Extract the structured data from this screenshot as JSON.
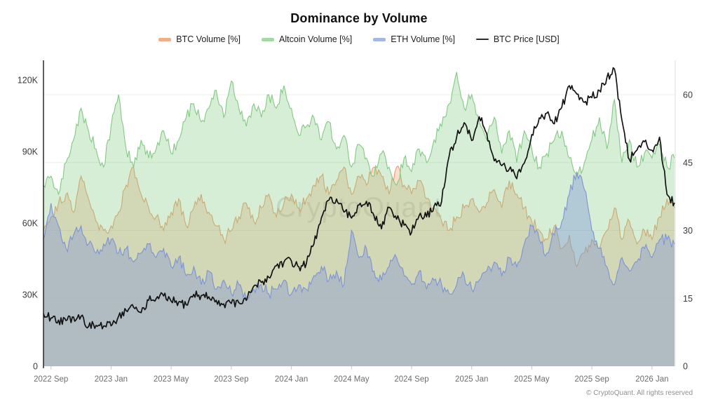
{
  "header": {
    "title": "Dominance by Volume"
  },
  "legend": {
    "items": [
      {
        "label": "BTC Volume [%]",
        "kind": "area",
        "swatch": "#f2ae85"
      },
      {
        "label": "Altcoin Volume [%]",
        "kind": "area",
        "swatch": "#a5d9a3"
      },
      {
        "label": "ETH Volume [%]",
        "kind": "area",
        "swatch": "#a3b7e6"
      },
      {
        "label": "BTC Price [USD]",
        "kind": "line",
        "swatch": "#2b2b2b"
      }
    ]
  },
  "watermark": {
    "text": "CryptoQuant"
  },
  "footer": {
    "copyright": "© CryptoQuant. All rights reserved"
  },
  "chart_data": {
    "type": "area",
    "title": "Dominance by Volume",
    "grid": "horizontal-faint",
    "legend_position": "top-center",
    "left_axis": {
      "title": "BTC Price [USD]",
      "ticks": [
        0,
        30000,
        60000,
        90000,
        120000
      ],
      "tick_labels": [
        "0",
        "30K",
        "60K",
        "90K",
        "120K"
      ],
      "range": [
        0,
        127660
      ]
    },
    "right_axis": {
      "title": "Volume [%]",
      "ticks": [
        0,
        15,
        30,
        45,
        60
      ],
      "tick_labels": [
        "0",
        "15",
        "30",
        "45",
        "60"
      ],
      "range": [
        0,
        67.3
      ]
    },
    "x_ticks": [
      "2022 Sep",
      "2023 Jan",
      "2023 May",
      "2023 Sep",
      "2024 Jan",
      "2024 May",
      "2024 Sep",
      "2025 Jan",
      "2025 May",
      "2025 Sep",
      "2026 Jan"
    ],
    "x": [
      "2022-08-15",
      "2022-09-01",
      "2022-09-15",
      "2022-10-01",
      "2022-10-15",
      "2022-11-01",
      "2022-11-15",
      "2022-12-01",
      "2022-12-15",
      "2023-01-01",
      "2023-01-15",
      "2023-02-01",
      "2023-02-15",
      "2023-03-01",
      "2023-03-15",
      "2023-04-01",
      "2023-04-15",
      "2023-05-01",
      "2023-05-15",
      "2023-06-01",
      "2023-06-15",
      "2023-07-01",
      "2023-07-15",
      "2023-08-01",
      "2023-08-15",
      "2023-09-01",
      "2023-09-15",
      "2023-10-01",
      "2023-10-15",
      "2023-11-01",
      "2023-11-15",
      "2023-12-01",
      "2023-12-15",
      "2024-01-01",
      "2024-01-15",
      "2024-02-01",
      "2024-02-15",
      "2024-03-01",
      "2024-03-15",
      "2024-04-01",
      "2024-04-15",
      "2024-05-01",
      "2024-05-15",
      "2024-06-01",
      "2024-06-15",
      "2024-07-01",
      "2024-07-15",
      "2024-08-01",
      "2024-08-15",
      "2024-09-01",
      "2024-09-15",
      "2024-10-01",
      "2024-10-15",
      "2024-11-01",
      "2024-11-15",
      "2024-12-01",
      "2024-12-15",
      "2025-01-01",
      "2025-01-15",
      "2025-02-01",
      "2025-02-15",
      "2025-03-01",
      "2025-03-15",
      "2025-04-01",
      "2025-04-15",
      "2025-05-01",
      "2025-05-15",
      "2025-06-01",
      "2025-06-15",
      "2025-07-01",
      "2025-07-15",
      "2025-08-01",
      "2025-08-15",
      "2025-09-01",
      "2025-09-15",
      "2025-10-01",
      "2025-10-15",
      "2025-11-01",
      "2025-11-15",
      "2025-12-01",
      "2025-12-15",
      "2026-01-01",
      "2026-01-15",
      "2026-02-01",
      "2026-02-15"
    ],
    "series": [
      {
        "name": "BTC Volume [%]",
        "type": "area",
        "axis": "right",
        "stroke": "#ef9a6d",
        "fill": "rgba(240,154,110,0.33)",
        "values": [
          30,
          33,
          36,
          38,
          34,
          42,
          37,
          32,
          30,
          31,
          34,
          40,
          44,
          38,
          35,
          33,
          30,
          34,
          37,
          31,
          35,
          38,
          34,
          31,
          28,
          30,
          33,
          36,
          32,
          35,
          38,
          33,
          36,
          38,
          35,
          37,
          40,
          42,
          38,
          41,
          44,
          38,
          42,
          40,
          44,
          42,
          38,
          44,
          40,
          38,
          41,
          37,
          35,
          32,
          30,
          33,
          35,
          37,
          34,
          36,
          39,
          35,
          41,
          38,
          35,
          32,
          30,
          28,
          31,
          26,
          29,
          22,
          25,
          28,
          26,
          30,
          35,
          28,
          32,
          27,
          30,
          28,
          33,
          37,
          35
        ]
      },
      {
        "name": "Altcoin Volume [%]",
        "type": "area",
        "axis": "right",
        "stroke": "#82ca81",
        "fill": "rgba(130,202,129,0.33)",
        "values": [
          40,
          42,
          38,
          45,
          50,
          57,
          52,
          48,
          44,
          53,
          60,
          48,
          44,
          50,
          46,
          48,
          52,
          47,
          50,
          55,
          58,
          54,
          57,
          61,
          55,
          63,
          57,
          53,
          58,
          55,
          60,
          57,
          62,
          57,
          51,
          53,
          55,
          50,
          54,
          48,
          51,
          44,
          49,
          46,
          42,
          47,
          44,
          40,
          46,
          43,
          48,
          45,
          50,
          53,
          58,
          65,
          57,
          60,
          54,
          50,
          55,
          47,
          52,
          45,
          52,
          48,
          44,
          47,
          50,
          52,
          46,
          42,
          45,
          50,
          55,
          48,
          59,
          45,
          50,
          44,
          47,
          46,
          49,
          44,
          46
        ]
      },
      {
        "name": "ETH Volume [%]",
        "type": "area",
        "axis": "right",
        "stroke": "#7d93d8",
        "fill": "rgba(125,147,216,0.40)",
        "values": [
          28,
          36,
          31,
          26,
          29,
          31,
          27,
          25,
          27,
          28,
          25,
          26,
          23,
          25,
          27,
          24,
          26,
          22,
          24,
          20,
          22,
          18,
          21,
          17,
          19,
          16,
          18,
          15,
          17,
          18,
          16,
          17,
          19,
          16,
          18,
          17,
          20,
          22,
          19,
          21,
          18,
          30,
          24,
          26,
          21,
          19,
          22,
          24,
          20,
          18,
          21,
          17,
          19,
          18,
          16,
          18,
          20,
          17,
          19,
          21,
          23,
          20,
          24,
          22,
          27,
          31,
          28,
          25,
          29,
          32,
          38,
          43,
          39,
          30,
          26,
          22,
          18,
          24,
          21,
          23,
          26,
          24,
          28,
          28,
          27
        ]
      },
      {
        "name": "BTC Price [USD]",
        "type": "line",
        "axis": "left",
        "stroke": "#131313",
        "values": [
          22000,
          20200,
          19300,
          19100,
          20600,
          20900,
          16600,
          17100,
          16800,
          16900,
          20900,
          23300,
          24600,
          22400,
          27600,
          28300,
          29400,
          27200,
          26900,
          25700,
          30100,
          29600,
          29100,
          27600,
          26100,
          26300,
          26600,
          27600,
          33600,
          35100,
          37200,
          42100,
          43600,
          44100,
          41600,
          43100,
          51200,
          62200,
          69600,
          70100,
          64600,
          62100,
          67600,
          69100,
          63100,
          57600,
          66600,
          61600,
          59100,
          56100,
          63100,
          62600,
          67100,
          69100,
          88100,
          96100,
          102100,
          94600,
          104600,
          97600,
          86100,
          84100,
          82600,
          78600,
          85100,
          97100,
          104100,
          106100,
          101600,
          108600,
          117600,
          114100,
          110600,
          112600,
          115600,
          121100,
          124600,
          103100,
          86600,
          90600,
          94100,
          90500,
          96000,
          72000,
          68500
        ]
      }
    ]
  }
}
